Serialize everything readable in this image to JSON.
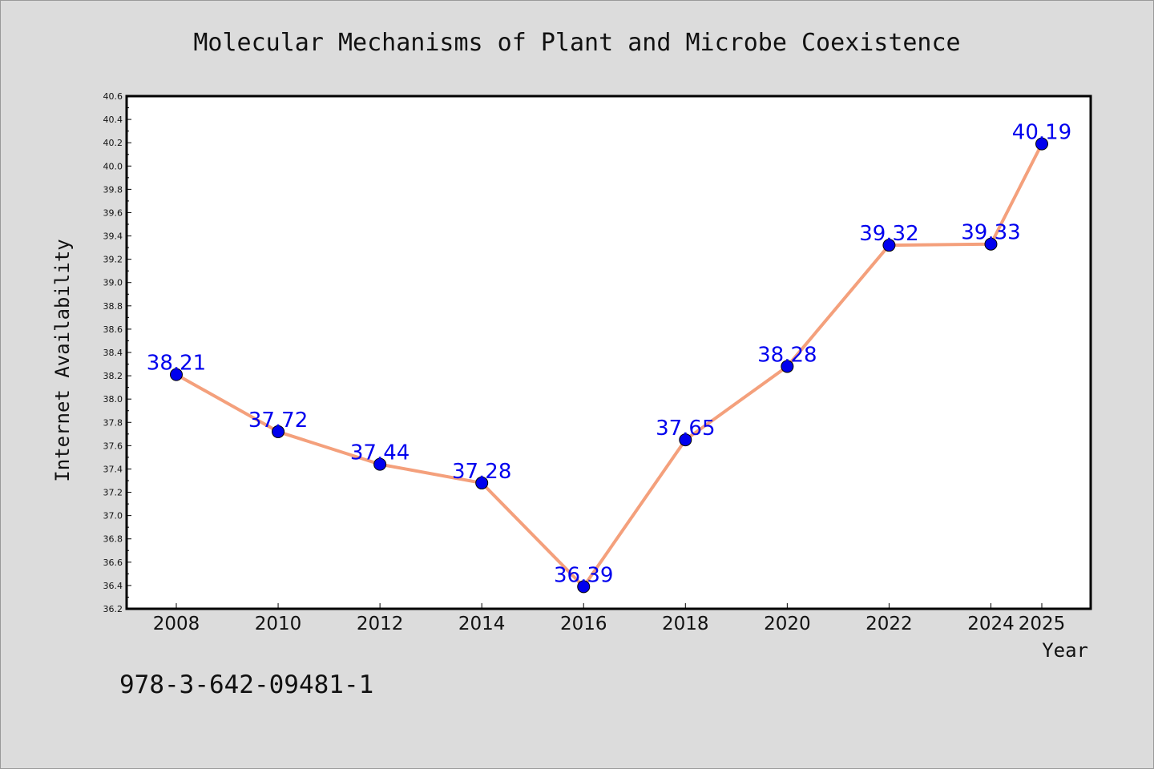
{
  "chart_data": {
    "type": "line",
    "title": "Molecular Mechanisms of Plant and Microbe Coexistence",
    "xlabel": "Year",
    "ylabel": "Internet Availability",
    "x": [
      "2008",
      "2010",
      "2012",
      "2014",
      "2016",
      "2018",
      "2020",
      "2022",
      "2024",
      "2025"
    ],
    "values": [
      38.21,
      37.72,
      37.44,
      37.28,
      36.39,
      37.65,
      38.28,
      39.32,
      39.33,
      40.19
    ],
    "value_labels": [
      "38.21",
      "37.72",
      "37.44",
      "37.28",
      "36.39",
      "37.65",
      "38.28",
      "39.32",
      "39.33",
      "40.19"
    ],
    "ylim": [
      36.2,
      40.6
    ],
    "yticks": [
      "36.2",
      "36.4",
      "36.6",
      "36.8",
      "37.0",
      "37.2",
      "37.4",
      "37.6",
      "37.8",
      "38.0",
      "38.2",
      "38.4",
      "38.6",
      "38.8",
      "39.0",
      "39.2",
      "39.4",
      "39.6",
      "39.8",
      "40.0",
      "40.2",
      "40.4",
      "40.6"
    ],
    "grid": false,
    "line_color": "#f4a07c",
    "marker_color": "#0000ee",
    "label_color": "#0000ee"
  },
  "footer": {
    "isbn": "978-3-642-09481-1"
  }
}
